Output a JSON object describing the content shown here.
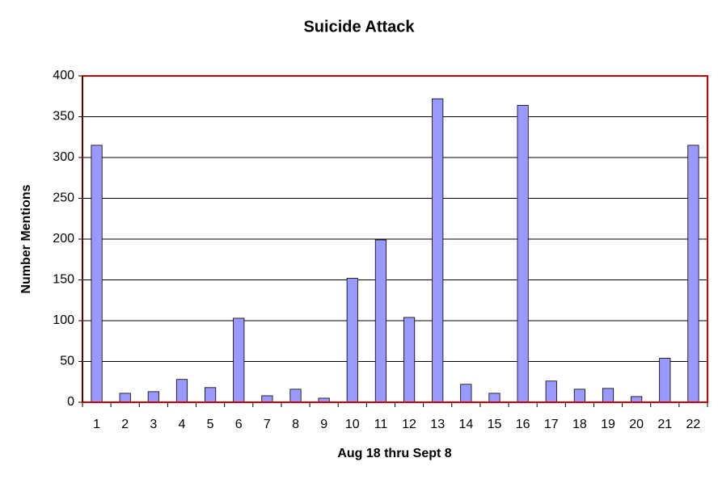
{
  "chart_data": {
    "type": "bar",
    "title": "Suicide Attack",
    "x_label": "Aug 18 thru Sept 8",
    "y_label": "Number Mentions",
    "categories": [
      "1",
      "2",
      "3",
      "4",
      "5",
      "6",
      "7",
      "8",
      "9",
      "10",
      "11",
      "12",
      "13",
      "14",
      "15",
      "16",
      "17",
      "18",
      "19",
      "20",
      "21",
      "22"
    ],
    "values": [
      315,
      11,
      13,
      28,
      18,
      103,
      8,
      16,
      5,
      152,
      199,
      104,
      372,
      22,
      11,
      364,
      26,
      16,
      17,
      7,
      54,
      315
    ],
    "color": "#9999ff",
    "ylim": [
      0,
      400
    ],
    "yticks": [
      0,
      50,
      100,
      150,
      200,
      250,
      300,
      350,
      400
    ],
    "grid": true
  }
}
